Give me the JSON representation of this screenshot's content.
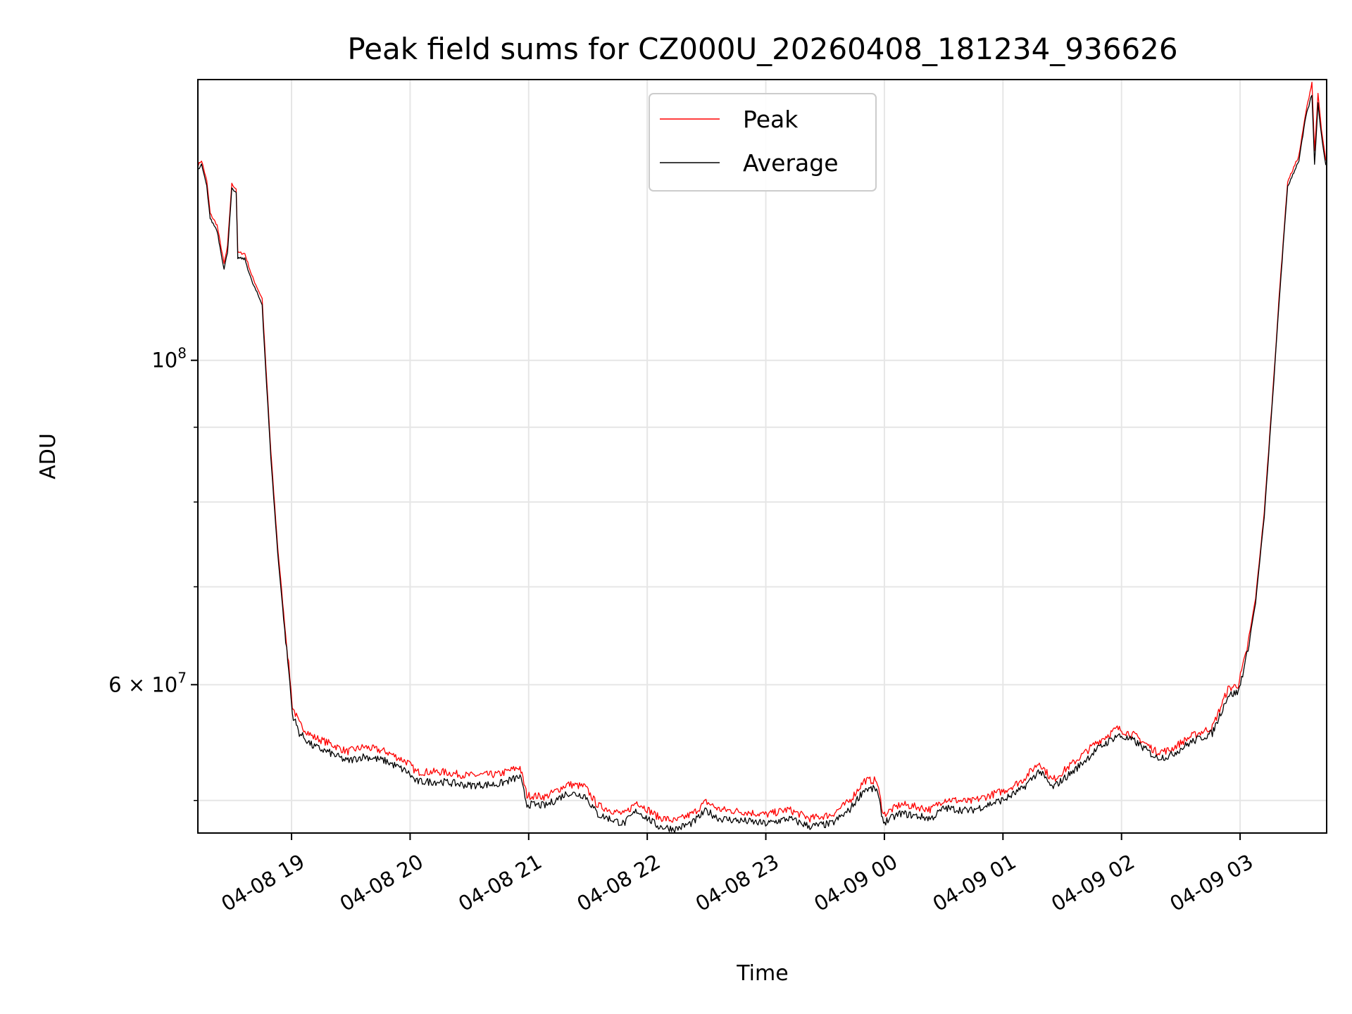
{
  "chart_data": {
    "type": "line",
    "title": "Peak field sums for CZ000U_20260408_181234_936626",
    "xlabel": "Time",
    "ylabel": "ADU",
    "yscale": "log",
    "x_units": "hours since 04-08 00:00",
    "xlim": [
      18.21,
      27.73
    ],
    "ylim_millions": [
      47.5,
      155.6
    ],
    "grid": true,
    "legend_position": "top-center",
    "x_ticks": [
      {
        "value": 19,
        "label": "04-08 19"
      },
      {
        "value": 20,
        "label": "04-08 20"
      },
      {
        "value": 21,
        "label": "04-08 21"
      },
      {
        "value": 22,
        "label": "04-08 22"
      },
      {
        "value": 23,
        "label": "04-08 23"
      },
      {
        "value": 24,
        "label": "04-09 00"
      },
      {
        "value": 25,
        "label": "04-09 01"
      },
      {
        "value": 26,
        "label": "04-09 02"
      },
      {
        "value": 27,
        "label": "04-09 03"
      }
    ],
    "y_major_ticks": [
      {
        "value": 100,
        "mantissa": "",
        "base": "10",
        "exp": "8"
      },
      {
        "value": 60,
        "mantissa": "6 × ",
        "base": "10",
        "exp": "7"
      }
    ],
    "y_minor_ticks": [
      50,
      70,
      80,
      90
    ],
    "x": [
      18.212,
      18.241,
      18.285,
      18.314,
      18.372,
      18.431,
      18.46,
      18.496,
      18.533,
      18.547,
      18.606,
      18.664,
      18.752,
      18.774,
      18.825,
      18.883,
      18.942,
      18.985,
      19.007,
      19.066,
      19.175,
      19.321,
      19.467,
      19.613,
      19.796,
      19.978,
      20.051,
      20.27,
      20.489,
      20.745,
      20.927,
      20.985,
      21.146,
      21.328,
      21.474,
      21.584,
      21.803,
      21.912,
      22.095,
      22.241,
      22.387,
      22.496,
      22.606,
      22.825,
      23.007,
      23.19,
      23.372,
      23.555,
      23.701,
      23.832,
      23.934,
      23.993,
      24.139,
      24.394,
      24.504,
      24.723,
      25.015,
      25.161,
      25.307,
      25.416,
      25.599,
      25.781,
      25.964,
      26.109,
      26.292,
      26.401,
      26.584,
      26.766,
      26.898,
      26.985,
      27.058,
      27.131,
      27.204,
      27.277,
      27.336,
      27.401,
      27.496,
      27.555,
      27.606,
      27.628,
      27.657,
      27.686,
      27.723
    ],
    "series": [
      {
        "name": "Peak",
        "color": "#ff0000",
        "values_millions": [
          136,
          137,
          132.6,
          126,
          123.7,
          116.4,
          119.6,
          132,
          131,
          118.5,
          118.3,
          114.3,
          110.2,
          102.2,
          86.7,
          74.6,
          66,
          60.9,
          58,
          56.4,
          55.3,
          54.7,
          54,
          54.4,
          54,
          53.1,
          52.3,
          52.3,
          52,
          52.1,
          52.7,
          50.4,
          50.3,
          51.3,
          51.1,
          49.6,
          48.9,
          49.9,
          48.7,
          48.4,
          49,
          49.9,
          49.3,
          49.1,
          48.9,
          49.3,
          48.6,
          48.9,
          49.9,
          51.6,
          51.6,
          48.9,
          49.7,
          49.3,
          50.1,
          49.9,
          50.8,
          51.6,
          53.1,
          51.6,
          53.1,
          54.7,
          56,
          55.4,
          54,
          54.1,
          55.3,
          56.1,
          59.6,
          60,
          63.4,
          68.8,
          78.8,
          95.5,
          112.5,
          132.5,
          138,
          147.8,
          155,
          139,
          152,
          143.8,
          137
        ]
      },
      {
        "name": "Average",
        "color": "#000000",
        "values_millions": [
          135,
          136,
          131.5,
          125,
          122.7,
          115.4,
          118.6,
          131,
          130,
          117.5,
          117.3,
          113.3,
          109.2,
          101.2,
          85.9,
          73.9,
          65.4,
          60.3,
          57.3,
          55.6,
          54.5,
          53.9,
          53.2,
          53.6,
          53.2,
          52.3,
          51.5,
          51.5,
          51.2,
          51.3,
          51.9,
          49.7,
          49.6,
          50.6,
          50.4,
          48.9,
          48.2,
          49.2,
          48,
          47.8,
          48.3,
          49.2,
          48.6,
          48.4,
          48.2,
          48.6,
          48,
          48.2,
          49.2,
          50.9,
          50.9,
          48.3,
          49,
          48.6,
          49.4,
          49.2,
          50.1,
          50.9,
          52.4,
          51,
          52.4,
          54.1,
          55.4,
          54.9,
          53.5,
          53.6,
          54.8,
          55.6,
          59,
          59.3,
          62.9,
          68.3,
          78.2,
          94.8,
          111.7,
          131.5,
          137,
          146.8,
          152,
          136,
          150,
          142.5,
          136
        ]
      }
    ]
  }
}
